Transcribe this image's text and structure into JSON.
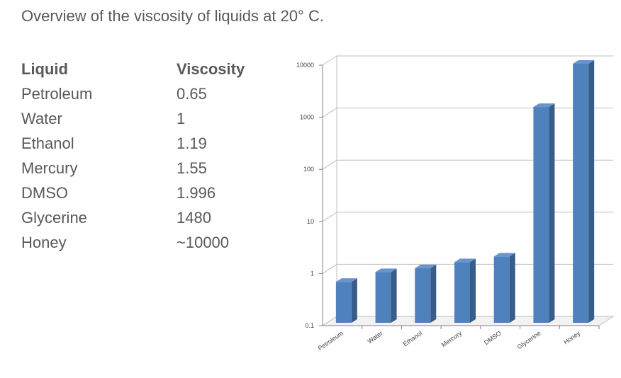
{
  "page": {
    "title": "Overview of the viscosity of liquids at 20° C."
  },
  "table": {
    "headers": [
      "Liquid",
      "Viscosity"
    ],
    "rows": [
      [
        "Petroleum",
        "0.65"
      ],
      [
        "Water",
        "1"
      ],
      [
        "Ethanol",
        "1.19"
      ],
      [
        "Mercury",
        "1.55"
      ],
      [
        "DMSO",
        "1.996"
      ],
      [
        "Glycerine",
        "1480"
      ],
      [
        "Honey",
        "~10000"
      ]
    ]
  },
  "chart_data": {
    "type": "bar",
    "categories": [
      "Petroleum",
      "Water",
      "Ethanol",
      "Mercury",
      "DMSO",
      "Glycerine",
      "Honey"
    ],
    "values": [
      0.65,
      1,
      1.19,
      1.55,
      1.996,
      1480,
      10000
    ],
    "y_scale": "log",
    "ylim": [
      0.1,
      10000
    ],
    "y_ticks": [
      "0.1",
      "1",
      "10",
      "100",
      "1000",
      "10000"
    ],
    "grid": true,
    "colors": {
      "bar_front": "#4F81BD",
      "bar_side": "#385D8A",
      "bar_top": "#6A95CC",
      "grid": "#BFBFBF"
    }
  }
}
